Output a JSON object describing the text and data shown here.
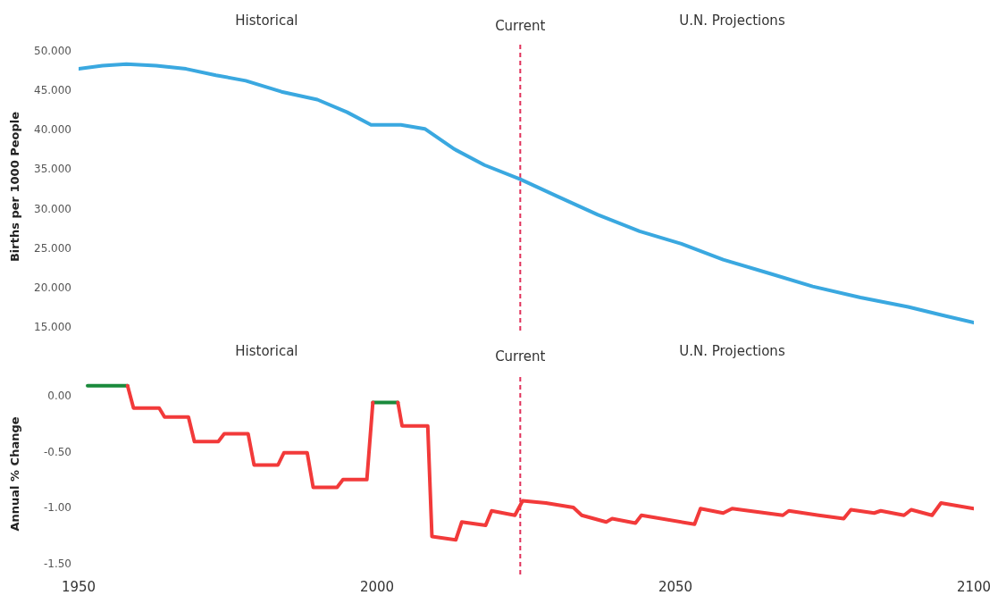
{
  "chart_data": [
    {
      "type": "line",
      "ylabel": "Births per 1000 People",
      "xlim": [
        1950,
        2100
      ],
      "xticks": [
        1950,
        2000,
        2050,
        2100
      ],
      "ylim": [
        14.5,
        51
      ],
      "yticks": [
        {
          "value": 15,
          "label": "15.000"
        },
        {
          "value": 20,
          "label": "20.000"
        },
        {
          "value": 25,
          "label": "25.000"
        },
        {
          "value": 30,
          "label": "30.000"
        },
        {
          "value": 35,
          "label": "35.000"
        },
        {
          "value": 40,
          "label": "40.000"
        },
        {
          "value": 45,
          "label": "45.000"
        },
        {
          "value": 50,
          "label": "50.000"
        }
      ],
      "tick_labels": "y",
      "marker": "none",
      "annotations": [
        "Historical",
        "U.N. Projections"
      ],
      "ref_lines": [
        {
          "axis": "x",
          "value": 2024,
          "label": "Current",
          "color": "#e0305a",
          "line_style": "dashed"
        }
      ],
      "series": [
        {
          "color": "#3aa8e0",
          "x": [
            1950,
            1954,
            1958,
            1963,
            1968,
            1973,
            1978,
            1984,
            1990,
            1995,
            1999,
            2004,
            2008,
            2013,
            2018,
            2024,
            2030,
            2037,
            2044,
            2051,
            2058,
            2066,
            2073,
            2081,
            2089,
            2095,
            2100
          ],
          "values": [
            47.7,
            48.1,
            48.3,
            48.1,
            47.7,
            46.9,
            46.2,
            44.8,
            43.8,
            42.2,
            40.6,
            40.6,
            40.1,
            37.5,
            35.5,
            33.7,
            31.6,
            29.2,
            27.1,
            25.5,
            23.5,
            21.7,
            20.1,
            18.7,
            17.5,
            16.4,
            15.5
          ]
        }
      ]
    },
    {
      "type": "line",
      "ylabel": "Annual % Change",
      "xlim": [
        1950,
        2100
      ],
      "xticks": [
        1950,
        2000,
        2050,
        2100
      ],
      "ylim": [
        -1.6,
        0.2
      ],
      "yticks": [
        {
          "value": -1.5,
          "label": "-1.50"
        },
        {
          "value": -1,
          "label": "-1.00"
        },
        {
          "value": -0.5,
          "label": "-0.50"
        },
        {
          "value": 0,
          "label": "0.00"
        }
      ],
      "marker": "none",
      "annotations": [
        "Historical",
        "U.N. Projections"
      ],
      "ref_lines": [
        {
          "axis": "x",
          "value": 2024,
          "label": "Current",
          "color": "#e0305a",
          "line_style": "dashed"
        }
      ],
      "series": [
        {
          "color": "#1a8a3c",
          "x": [
            1951.5,
            1958.2,
            1980,
            1999.3,
            2003.5
          ],
          "values": [
            0.09,
            0.09,
            null,
            -0.06,
            -0.06
          ]
        },
        {
          "color": "#f23a3a",
          "x": [
            1958.2,
            1959.2,
            1963.5,
            1964.4,
            1968.4,
            1969.4,
            1973.4,
            1974.4,
            1978.4,
            1979.4,
            1983.4,
            1984.4,
            1988.3,
            1989.3,
            1993.3,
            1994.3,
            1998.3,
            1999.3,
            2001,
            2003.5,
            2004.2,
            2008.5,
            2009.2,
            2013.2,
            2014.2,
            2018.2,
            2019.2,
            2023.1,
            2024.4,
            2028.3,
            2032.9,
            2034.3,
            2038.4,
            2039.4,
            2043.3,
            2044.3,
            2053.2,
            2054.2,
            2058,
            2059.5,
            2068,
            2069,
            2074,
            2078.2,
            2079.4,
            2083.3,
            2084.4,
            2088.3,
            2089.5,
            2093,
            2094.5,
            2100
          ],
          "values": [
            0.09,
            -0.11,
            -0.11,
            -0.19,
            -0.19,
            -0.41,
            -0.41,
            -0.34,
            -0.34,
            -0.62,
            -0.62,
            -0.51,
            -0.51,
            -0.82,
            -0.82,
            -0.75,
            -0.75,
            -0.06,
            null,
            -0.06,
            -0.27,
            -0.27,
            -1.26,
            -1.29,
            -1.13,
            -1.16,
            -1.03,
            -1.07,
            -0.94,
            -0.96,
            -1.0,
            -1.07,
            -1.13,
            -1.1,
            -1.14,
            -1.07,
            -1.15,
            -1.01,
            -1.05,
            -1.01,
            -1.07,
            -1.03,
            -1.07,
            -1.1,
            -1.02,
            -1.05,
            -1.03,
            -1.07,
            -1.02,
            -1.07,
            -0.96,
            -1.01
          ]
        }
      ]
    }
  ]
}
